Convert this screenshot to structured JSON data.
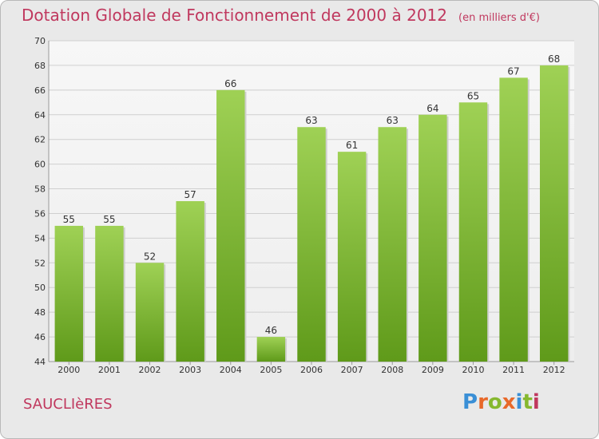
{
  "header": {
    "title": "Dotation Globale de Fonctionnement de 2000 à 2012",
    "unit": "(en milliers d'€)"
  },
  "footer": {
    "commune": "SAUCLIèRES",
    "logo": "Proxiti",
    "logo_colors": [
      "#3a8fd6",
      "#e8692a",
      "#86b82f",
      "#e8692a",
      "#3a8fd6",
      "#86b82f",
      "#c0385e"
    ]
  },
  "colors": {
    "bar_top": "#9fd155",
    "bar_bottom": "#5f9a1a",
    "grid": "#cfcfcf",
    "title": "#c0385e"
  },
  "chart_data": {
    "type": "bar",
    "title": "Dotation Globale de Fonctionnement de 2000 à 2012",
    "subtitle": "(en milliers d'€)",
    "categories": [
      "2000",
      "2001",
      "2002",
      "2003",
      "2004",
      "2005",
      "2006",
      "2007",
      "2008",
      "2009",
      "2010",
      "2011",
      "2012"
    ],
    "values": [
      55,
      55,
      52,
      57,
      66,
      46,
      63,
      61,
      63,
      64,
      65,
      67,
      68
    ],
    "ylim": [
      44,
      70
    ],
    "yticks": [
      44,
      46,
      48,
      50,
      52,
      54,
      56,
      58,
      60,
      62,
      64,
      66,
      68,
      70
    ],
    "grid": true,
    "xlabel": "",
    "ylabel": ""
  }
}
